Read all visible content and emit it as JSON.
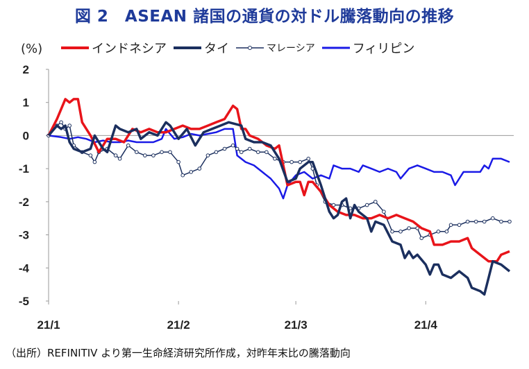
{
  "title": "図 2　ASEAN 諸国の通貨の対ドル騰落動向の推移",
  "source": "（出所）REFINITIV より第一生命経済研究所作成，対昨年末比の騰落動向",
  "colors": {
    "indonesia": "#e8141a",
    "thailand": "#1b2f5e",
    "malaysia": "#1b2f5e",
    "philippines": "#1a1ae6",
    "axis": "#999999"
  },
  "chart_data": {
    "type": "line",
    "title": "図 2　ASEAN 諸国の通貨の対ドル騰落動向の推移",
    "ylabel": "(%)",
    "xlabel": "",
    "ylim": [
      -5,
      2
    ],
    "yticks": [
      "2",
      "1",
      "0",
      "-1",
      "-2",
      "-3",
      "-4",
      "-5"
    ],
    "xticks": [
      "21/1",
      "21/2",
      "21/3",
      "21/4"
    ],
    "x_positions_days": [
      0,
      31,
      59,
      90
    ],
    "x_range_days": [
      0,
      111
    ],
    "series": [
      {
        "name": "インドネシア",
        "key": "indonesia",
        "marker": false,
        "points": [
          [
            0,
            0
          ],
          [
            2,
            0.5
          ],
          [
            4,
            1.1
          ],
          [
            5,
            1.0
          ],
          [
            6,
            1.1
          ],
          [
            7,
            1.1
          ],
          [
            8,
            0.4
          ],
          [
            10,
            0.0
          ],
          [
            12,
            -0.5
          ],
          [
            13,
            -0.3
          ],
          [
            14,
            -0.1
          ],
          [
            16,
            -0.1
          ],
          [
            18,
            -0.2
          ],
          [
            20,
            0.2
          ],
          [
            22,
            0.1
          ],
          [
            24,
            0.2
          ],
          [
            26,
            0.1
          ],
          [
            28,
            0.1
          ],
          [
            30,
            0.2
          ],
          [
            32,
            0.3
          ],
          [
            34,
            0.2
          ],
          [
            36,
            0.2
          ],
          [
            38,
            0.3
          ],
          [
            40,
            0.4
          ],
          [
            42,
            0.5
          ],
          [
            44,
            0.9
          ],
          [
            45,
            0.8
          ],
          [
            46,
            0.2
          ],
          [
            47,
            0.2
          ],
          [
            48,
            0.0
          ],
          [
            50,
            -0.1
          ],
          [
            52,
            -0.3
          ],
          [
            54,
            -0.4
          ],
          [
            55,
            -0.3
          ],
          [
            57,
            -1.5
          ],
          [
            59,
            -1.4
          ],
          [
            60,
            -1.4
          ],
          [
            61,
            -1.8
          ],
          [
            62,
            -1.4
          ],
          [
            63,
            -1.4
          ],
          [
            65,
            -1.7
          ],
          [
            67,
            -2.1
          ],
          [
            69,
            -2.3
          ],
          [
            71,
            -2.4
          ],
          [
            73,
            -2.4
          ],
          [
            75,
            -2.5
          ],
          [
            77,
            -2.5
          ],
          [
            79,
            -2.4
          ],
          [
            81,
            -2.5
          ],
          [
            83,
            -2.4
          ],
          [
            85,
            -2.5
          ],
          [
            87,
            -2.6
          ],
          [
            89,
            -2.8
          ],
          [
            91,
            -2.9
          ],
          [
            92,
            -3.3
          ],
          [
            94,
            -3.3
          ],
          [
            96,
            -3.2
          ],
          [
            98,
            -3.2
          ],
          [
            100,
            -3.1
          ],
          [
            101,
            -3.4
          ],
          [
            103,
            -3.6
          ],
          [
            105,
            -3.8
          ],
          [
            107,
            -3.8
          ],
          [
            108,
            -3.6
          ],
          [
            110,
            -3.5
          ]
        ]
      },
      {
        "name": "タイ",
        "key": "thailand",
        "marker": false,
        "points": [
          [
            0,
            0
          ],
          [
            2,
            0.3
          ],
          [
            3,
            0.2
          ],
          [
            4,
            0.3
          ],
          [
            5,
            -0.2
          ],
          [
            6,
            -0.4
          ],
          [
            8,
            -0.5
          ],
          [
            10,
            -0.4
          ],
          [
            11,
            0.0
          ],
          [
            12,
            -0.2
          ],
          [
            13,
            -0.4
          ],
          [
            14,
            -0.5
          ],
          [
            16,
            0.3
          ],
          [
            17,
            0.2
          ],
          [
            19,
            0.1
          ],
          [
            21,
            0.2
          ],
          [
            22,
            -0.1
          ],
          [
            24,
            0.1
          ],
          [
            26,
            0.0
          ],
          [
            28,
            0.4
          ],
          [
            29,
            0.3
          ],
          [
            31,
            -0.1
          ],
          [
            33,
            0.2
          ],
          [
            35,
            -0.3
          ],
          [
            37,
            0.1
          ],
          [
            39,
            0.2
          ],
          [
            41,
            0.3
          ],
          [
            43,
            0.4
          ],
          [
            46,
            0.3
          ],
          [
            47,
            -0.1
          ],
          [
            49,
            -0.2
          ],
          [
            51,
            -0.2
          ],
          [
            53,
            -0.3
          ],
          [
            55,
            -0.7
          ],
          [
            57,
            -1.4
          ],
          [
            59,
            -1.3
          ],
          [
            60,
            -1.0
          ],
          [
            62,
            -0.8
          ],
          [
            63,
            -0.8
          ],
          [
            65,
            -1.5
          ],
          [
            67,
            -2.3
          ],
          [
            68,
            -2.5
          ],
          [
            69,
            -2.4
          ],
          [
            70,
            -2.0
          ],
          [
            71,
            -1.9
          ],
          [
            72,
            -2.5
          ],
          [
            73,
            -2.1
          ],
          [
            74,
            -2.3
          ],
          [
            76,
            -2.5
          ],
          [
            77,
            -2.9
          ],
          [
            78,
            -2.6
          ],
          [
            80,
            -2.7
          ],
          [
            82,
            -3.2
          ],
          [
            84,
            -3.3
          ],
          [
            85,
            -3.7
          ],
          [
            86,
            -3.5
          ],
          [
            87,
            -3.7
          ],
          [
            88,
            -3.6
          ],
          [
            90,
            -3.9
          ],
          [
            91,
            -4.2
          ],
          [
            92,
            -3.9
          ],
          [
            93,
            -3.9
          ],
          [
            94,
            -4.2
          ],
          [
            96,
            -4.3
          ],
          [
            98,
            -4.1
          ],
          [
            100,
            -4.3
          ],
          [
            101,
            -4.6
          ],
          [
            103,
            -4.7
          ],
          [
            104,
            -4.8
          ],
          [
            105,
            -4.3
          ],
          [
            106,
            -3.8
          ],
          [
            108,
            -3.9
          ],
          [
            110,
            -4.1
          ]
        ]
      },
      {
        "name": "マレーシア",
        "key": "malaysia",
        "marker": true,
        "points": [
          [
            0,
            0
          ],
          [
            2,
            0.3
          ],
          [
            3,
            0.4
          ],
          [
            4,
            0.2
          ],
          [
            5,
            0.3
          ],
          [
            6,
            -0.3
          ],
          [
            8,
            -0.5
          ],
          [
            10,
            -0.6
          ],
          [
            11,
            -0.8
          ],
          [
            12,
            -0.5
          ],
          [
            14,
            -0.4
          ],
          [
            16,
            -0.6
          ],
          [
            17,
            -0.7
          ],
          [
            19,
            -0.3
          ],
          [
            21,
            -0.5
          ],
          [
            23,
            -0.6
          ],
          [
            25,
            -0.6
          ],
          [
            27,
            -0.5
          ],
          [
            29,
            -0.5
          ],
          [
            31,
            -0.8
          ],
          [
            32,
            -1.2
          ],
          [
            34,
            -1.1
          ],
          [
            36,
            -1.0
          ],
          [
            38,
            -0.6
          ],
          [
            40,
            -0.5
          ],
          [
            42,
            -0.4
          ],
          [
            44,
            -0.3
          ],
          [
            45,
            -0.4
          ],
          [
            46,
            -0.5
          ],
          [
            48,
            -0.4
          ],
          [
            50,
            -0.5
          ],
          [
            52,
            -0.5
          ],
          [
            54,
            -0.7
          ],
          [
            56,
            -0.8
          ],
          [
            58,
            -0.8
          ],
          [
            60,
            -0.8
          ],
          [
            62,
            -0.7
          ],
          [
            63,
            -1.0
          ],
          [
            64,
            -1.5
          ],
          [
            66,
            -2.0
          ],
          [
            68,
            -2.1
          ],
          [
            70,
            -2.1
          ],
          [
            72,
            -2.2
          ],
          [
            74,
            -2.2
          ],
          [
            76,
            -2.1
          ],
          [
            78,
            -2.0
          ],
          [
            80,
            -2.3
          ],
          [
            82,
            -2.9
          ],
          [
            84,
            -2.9
          ],
          [
            86,
            -2.8
          ],
          [
            88,
            -2.8
          ],
          [
            89,
            -3.1
          ],
          [
            91,
            -3.0
          ],
          [
            93,
            -2.9
          ],
          [
            95,
            -2.9
          ],
          [
            96,
            -2.7
          ],
          [
            98,
            -2.7
          ],
          [
            100,
            -2.6
          ],
          [
            102,
            -2.6
          ],
          [
            104,
            -2.6
          ],
          [
            106,
            -2.5
          ],
          [
            108,
            -2.6
          ],
          [
            110,
            -2.6
          ]
        ]
      },
      {
        "name": "フィリピン",
        "key": "philippines",
        "marker": false,
        "points": [
          [
            0,
            0
          ],
          [
            3,
            -0.05
          ],
          [
            5,
            -0.1
          ],
          [
            7,
            -0.05
          ],
          [
            9,
            -0.1
          ],
          [
            11,
            -0.2
          ],
          [
            13,
            -0.15
          ],
          [
            15,
            -0.2
          ],
          [
            17,
            -0.2
          ],
          [
            19,
            -0.15
          ],
          [
            21,
            -0.2
          ],
          [
            23,
            -0.2
          ],
          [
            25,
            -0.2
          ],
          [
            27,
            -0.1
          ],
          [
            28,
            0.2
          ],
          [
            30,
            -0.1
          ],
          [
            32,
            -0.05
          ],
          [
            34,
            0.05
          ],
          [
            36,
            0.0
          ],
          [
            38,
            0.05
          ],
          [
            40,
            0.1
          ],
          [
            42,
            0.2
          ],
          [
            44,
            0.2
          ],
          [
            45,
            -0.6
          ],
          [
            47,
            -0.8
          ],
          [
            49,
            -0.9
          ],
          [
            51,
            -1.1
          ],
          [
            53,
            -1.3
          ],
          [
            55,
            -1.6
          ],
          [
            56,
            -1.9
          ],
          [
            57,
            -1.5
          ],
          [
            59,
            -1.2
          ],
          [
            61,
            -1.1
          ],
          [
            63,
            -1.3
          ],
          [
            65,
            -1.2
          ],
          [
            67,
            -1.3
          ],
          [
            68,
            -0.9
          ],
          [
            70,
            -1.0
          ],
          [
            72,
            -1.0
          ],
          [
            74,
            -1.1
          ],
          [
            75,
            -0.9
          ],
          [
            77,
            -1.0
          ],
          [
            79,
            -1.1
          ],
          [
            81,
            -1.0
          ],
          [
            83,
            -1.1
          ],
          [
            84,
            -1.3
          ],
          [
            86,
            -1.0
          ],
          [
            88,
            -0.9
          ],
          [
            90,
            -1.0
          ],
          [
            92,
            -1.1
          ],
          [
            94,
            -1.1
          ],
          [
            96,
            -1.2
          ],
          [
            97,
            -1.5
          ],
          [
            99,
            -1.1
          ],
          [
            101,
            -1.1
          ],
          [
            103,
            -1.1
          ],
          [
            104,
            -0.9
          ],
          [
            105,
            -1.0
          ],
          [
            106,
            -0.7
          ],
          [
            108,
            -0.7
          ],
          [
            110,
            -0.8
          ]
        ]
      }
    ]
  }
}
